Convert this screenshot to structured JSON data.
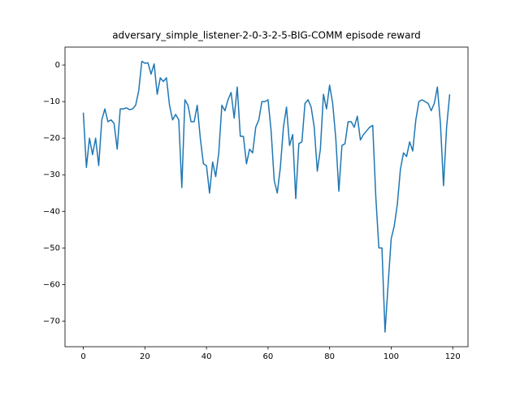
{
  "chart_data": {
    "type": "line",
    "title": "adversary_simple_listener-2-0-3-2-5-BIG-COMM episode reward",
    "x": [
      0,
      1,
      2,
      3,
      4,
      5,
      6,
      7,
      8,
      9,
      10,
      11,
      12,
      13,
      14,
      15,
      16,
      17,
      18,
      19,
      20,
      21,
      22,
      23,
      24,
      25,
      26,
      27,
      28,
      29,
      30,
      31,
      32,
      33,
      34,
      35,
      36,
      37,
      38,
      39,
      40,
      41,
      42,
      43,
      44,
      45,
      46,
      47,
      48,
      49,
      50,
      51,
      52,
      53,
      54,
      55,
      56,
      57,
      58,
      59,
      60,
      61,
      62,
      63,
      64,
      65,
      66,
      67,
      68,
      69,
      70,
      71,
      72,
      73,
      74,
      75,
      76,
      77,
      78,
      79,
      80,
      81,
      82,
      83,
      84,
      85,
      86,
      87,
      88,
      89,
      90,
      91,
      92,
      93,
      94,
      95,
      96,
      97,
      98,
      99,
      100,
      101,
      102,
      103,
      104,
      105,
      106,
      107,
      108,
      109,
      110,
      111,
      112,
      113,
      114,
      115,
      116,
      117,
      118,
      119
    ],
    "series": [
      {
        "name": "episode reward",
        "color": "#1f77b4",
        "values": [
          -13,
          -28,
          -20,
          -24.5,
          -20,
          -27.5,
          -15,
          -12,
          -15.5,
          -15,
          -16,
          -23,
          -12,
          -12,
          -11.7,
          -12.2,
          -12,
          -11,
          -7,
          1,
          0.5,
          0.6,
          -2.5,
          0.3,
          -8,
          -3.5,
          -4.5,
          -3.5,
          -11,
          -15,
          -13.5,
          -15,
          -33.5,
          -9.5,
          -11,
          -15.5,
          -15.5,
          -11,
          -20,
          -27,
          -27.5,
          -35,
          -26.5,
          -30.5,
          -24,
          -11,
          -12.5,
          -9.5,
          -7.5,
          -14.5,
          -6,
          -19.5,
          -19.5,
          -27,
          -23,
          -24,
          -17,
          -15,
          -10,
          -10,
          -9.5,
          -18,
          -31.5,
          -35,
          -28,
          -17,
          -11.5,
          -22,
          -19,
          -36.5,
          -21.5,
          -21,
          -10.5,
          -9.5,
          -11.5,
          -17,
          -29,
          -23,
          -8,
          -12,
          -5.5,
          -10.5,
          -20,
          -34.5,
          -22,
          -21.5,
          -15.5,
          -15.5,
          -17,
          -14,
          -20.5,
          -19,
          -18,
          -17,
          -16.5,
          -36,
          -50,
          -50,
          -73,
          -60,
          -47.5,
          -44,
          -38,
          -28.5,
          -24,
          -25,
          -21,
          -23.5,
          -15,
          -10,
          -9.5,
          -10,
          -10.5,
          -12.5,
          -10.5,
          -6,
          -16,
          -33,
          -17,
          -8
        ]
      }
    ],
    "xlim": [
      -5.95,
      124.95
    ],
    "ylim": [
      -77.0,
      4.9
    ],
    "xticks": [
      0,
      20,
      40,
      60,
      80,
      100,
      120
    ],
    "yticks": [
      {
        "value": -70,
        "label": "−70"
      },
      {
        "value": -60,
        "label": "−60"
      },
      {
        "value": -50,
        "label": "−50"
      },
      {
        "value": -40,
        "label": "−40"
      },
      {
        "value": -30,
        "label": "−30"
      },
      {
        "value": -20,
        "label": "−20"
      },
      {
        "value": -10,
        "label": "−10"
      },
      0
    ]
  }
}
